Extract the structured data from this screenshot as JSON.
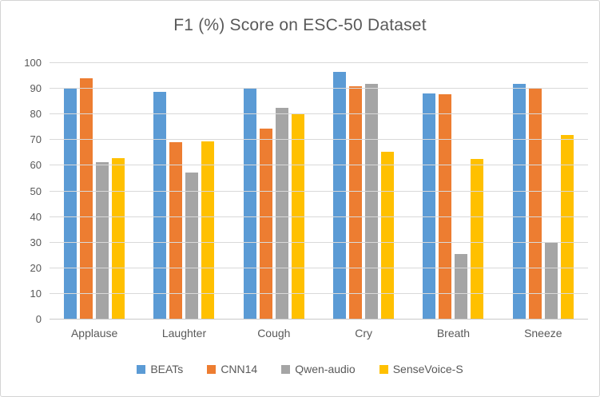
{
  "chart_data": {
    "type": "bar",
    "title": "F1 (%) Score on ESC-50 Dataset",
    "xlabel": "",
    "ylabel": "",
    "categories": [
      "Applause",
      "Laughter",
      "Cough",
      "Cry",
      "Breath",
      "Sneeze"
    ],
    "series": [
      {
        "name": "BEATs",
        "color": "#5B9BD5",
        "values": [
          90.5,
          88.7,
          90.5,
          96.5,
          88.2,
          92.0
        ]
      },
      {
        "name": "CNN14",
        "color": "#ED7D31",
        "values": [
          94.0,
          69.3,
          74.5,
          91.0,
          87.9,
          90.4
        ]
      },
      {
        "name": "Qwen-audio",
        "color": "#A5A5A5",
        "values": [
          61.5,
          57.2,
          82.7,
          91.8,
          25.5,
          29.8
        ]
      },
      {
        "name": "SenseVoice-S",
        "color": "#FFC000",
        "values": [
          63.0,
          69.6,
          80.5,
          65.5,
          62.5,
          72.0
        ]
      }
    ],
    "ylim": [
      0,
      100
    ],
    "yticks": [
      0,
      10,
      20,
      30,
      40,
      50,
      60,
      70,
      80,
      90,
      100
    ],
    "grid": true,
    "legend_position": "bottom"
  },
  "style_colors": {
    "text": "#595959",
    "gridline": "#D9D9D9",
    "frame_border": "#D4D4D4",
    "background": "#FFFFFF"
  }
}
